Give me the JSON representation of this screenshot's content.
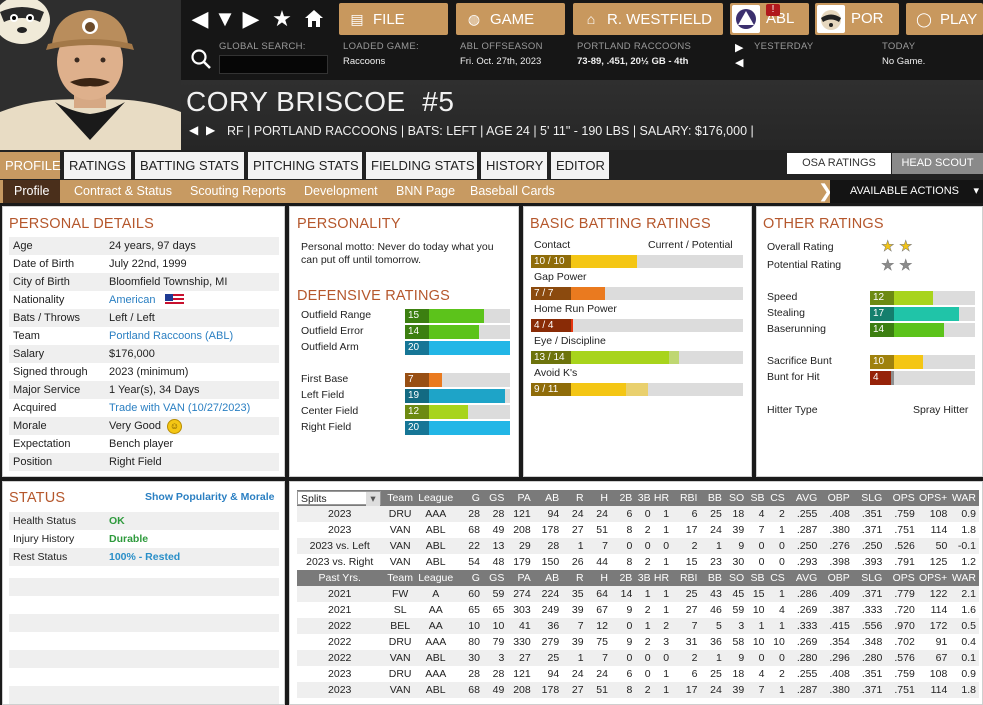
{
  "topnav": {
    "file": "FILE",
    "game": "GAME",
    "manager": "R. WESTFIELD",
    "league": "ABL",
    "team": "POR",
    "play": "PLAY",
    "alert": "!"
  },
  "infobar": {
    "search_label": "GLOBAL SEARCH:",
    "search_value": "",
    "loaded_label": "LOADED GAME:",
    "loaded_value": "Raccoons",
    "season_label": "ABL OFFSEASON",
    "season_value": "Fri. Oct. 27th, 2023",
    "team_label": "PORTLAND RACCOONS",
    "team_value": "73-89, .451, 20½ GB - 4th",
    "yesterday_label": "YESTERDAY",
    "today_label": "TODAY",
    "today_value": "No Game."
  },
  "player": {
    "name": "CORY BRISCOE",
    "number": "#5",
    "info": "RF | PORTLAND RACCOONS  |  BATS: LEFT  |  AGE 24  |  5' 11\" - 190 LBS  |  SALARY: $176,000  |"
  },
  "tabs": [
    "PROFILE",
    "RATINGS",
    "BATTING STATS",
    "PITCHING STATS",
    "FIELDING STATS",
    "HISTORY",
    "EDITOR"
  ],
  "right_tabs": [
    "OSA RATINGS",
    "HEAD SCOUT"
  ],
  "subtabs": [
    "Profile",
    "Contract & Status",
    "Scouting Reports",
    "Development",
    "BNN Page",
    "Baseball Cards"
  ],
  "actions_label": "AVAILABLE ACTIONS",
  "personal": {
    "title": "PERSONAL DETAILS",
    "rows": [
      {
        "k": "Age",
        "v": "24 years, 97 days"
      },
      {
        "k": "Date of Birth",
        "v": "July 22nd, 1999"
      },
      {
        "k": "City of Birth",
        "v": "Bloomfield Township, MI"
      },
      {
        "k": "Nationality",
        "v": "American"
      },
      {
        "k": "Bats / Throws",
        "v": "Left / Left"
      },
      {
        "k": "Team",
        "v": "Portland Raccoons (ABL)"
      },
      {
        "k": "Salary",
        "v": "$176,000"
      },
      {
        "k": "Signed through",
        "v": "2023 (minimum)"
      },
      {
        "k": "Major Service",
        "v": "1 Year(s), 34 Days"
      },
      {
        "k": "Acquired",
        "v": "Trade with VAN (10/27/2023)"
      },
      {
        "k": "Morale",
        "v": "Very Good"
      },
      {
        "k": "Expectation",
        "v": "Bench player"
      },
      {
        "k": "Position",
        "v": "Right Field"
      }
    ]
  },
  "personality": {
    "title": "PERSONALITY",
    "motto": "Personal motto: Never do today what you can put off until tomorrow."
  },
  "defensive": {
    "title": "DEFENSIVE RATINGS",
    "rows": [
      {
        "label": "Outfield Range",
        "value": 15,
        "color": "#5cc31b"
      },
      {
        "label": "Outfield Error",
        "value": 14,
        "color": "#5cc31b"
      },
      {
        "label": "Outfield Arm",
        "value": 20,
        "color": "#22b6e6"
      },
      {
        "label": "First Base",
        "value": 7,
        "color": "#ea7a1f"
      },
      {
        "label": "Left Field",
        "value": 19,
        "color": "#1ea4c8"
      },
      {
        "label": "Center Field",
        "value": 12,
        "color": "#a8d41c"
      },
      {
        "label": "Right Field",
        "value": 20,
        "color": "#22b6e6"
      }
    ]
  },
  "batting": {
    "title": "BASIC BATTING RATINGS",
    "col_label": "Current / Potential",
    "rows": [
      {
        "label": "Contact",
        "text": "10 / 10",
        "current": 10,
        "potential": 10,
        "color": "#f4c614"
      },
      {
        "label": "Gap Power",
        "text": "7 / 7",
        "current": 7,
        "potential": 7,
        "color": "#ea7a1f"
      },
      {
        "label": "Home Run Power",
        "text": "4 / 4",
        "current": 4,
        "potential": 4,
        "color": "#e6350f"
      },
      {
        "label": "Eye / Discipline",
        "text": "13 / 14",
        "current": 13,
        "potential": 14,
        "color": "#a8d41c"
      },
      {
        "label": "Avoid K's",
        "text": "9 / 11",
        "current": 9,
        "potential": 11,
        "color": "#f4c614"
      }
    ]
  },
  "other": {
    "title": "OTHER RATINGS",
    "overall_label": "Overall Rating",
    "potential_label": "Potential Rating",
    "overall_stars": 2,
    "potential_stars": 2,
    "rows": [
      {
        "label": "Speed",
        "value": 12,
        "color": "#a8d41c"
      },
      {
        "label": "Stealing",
        "value": 17,
        "color": "#20c4a8"
      },
      {
        "label": "Baserunning",
        "value": 14,
        "color": "#5cc31b"
      },
      {
        "label": "Sacrifice Bunt",
        "value": 10,
        "color": "#f4c614"
      },
      {
        "label": "Bunt for Hit",
        "value": 4,
        "color": "#e6350f"
      }
    ],
    "hitter_label": "Hitter Type",
    "hitter_value": "Spray Hitter"
  },
  "status": {
    "title": "STATUS",
    "link": "Show Popularity & Morale",
    "rows": [
      {
        "k": "Health Status",
        "v": "OK",
        "color": "#2e9a3c"
      },
      {
        "k": "Injury History",
        "v": "Durable",
        "color": "#2e9a3c"
      },
      {
        "k": "Rest Status",
        "v": "100% - Rested",
        "color": "#2a8fc8"
      }
    ]
  },
  "stats": {
    "select": "Splits",
    "headers": [
      "Team",
      "League",
      "G",
      "GS",
      "PA",
      "AB",
      "R",
      "H",
      "2B",
      "3B",
      "HR",
      "RBI",
      "BB",
      "SO",
      "SB",
      "CS",
      "AVG",
      "OBP",
      "SLG",
      "OPS",
      "OPS+",
      "WAR"
    ],
    "past_label": "Past Yrs.",
    "splits": [
      [
        "2023",
        "DRU",
        "AAA",
        "28",
        "28",
        "121",
        "94",
        "24",
        "24",
        "6",
        "0",
        "1",
        "6",
        "25",
        "18",
        "4",
        "2",
        ".255",
        ".408",
        ".351",
        ".759",
        "108",
        "0.9"
      ],
      [
        "2023",
        "VAN",
        "ABL",
        "68",
        "49",
        "208",
        "178",
        "27",
        "51",
        "8",
        "2",
        "1",
        "17",
        "24",
        "39",
        "7",
        "1",
        ".287",
        ".380",
        ".371",
        ".751",
        "114",
        "1.8"
      ],
      [
        "2023 vs. Left",
        "VAN",
        "ABL",
        "22",
        "13",
        "29",
        "28",
        "1",
        "7",
        "0",
        "0",
        "0",
        "2",
        "1",
        "9",
        "0",
        "0",
        ".250",
        ".276",
        ".250",
        ".526",
        "50",
        "-0.1"
      ],
      [
        "2023 vs. Right",
        "VAN",
        "ABL",
        "54",
        "48",
        "179",
        "150",
        "26",
        "44",
        "8",
        "2",
        "1",
        "15",
        "23",
        "30",
        "0",
        "0",
        ".293",
        ".398",
        ".393",
        ".791",
        "125",
        "1.2"
      ]
    ],
    "past": [
      [
        "2021",
        "FW",
        "A",
        "60",
        "59",
        "274",
        "224",
        "35",
        "64",
        "14",
        "1",
        "1",
        "25",
        "43",
        "45",
        "15",
        "1",
        ".286",
        ".409",
        ".371",
        ".779",
        "122",
        "2.1"
      ],
      [
        "2021",
        "SL",
        "AA",
        "65",
        "65",
        "303",
        "249",
        "39",
        "67",
        "9",
        "2",
        "1",
        "27",
        "46",
        "59",
        "10",
        "4",
        ".269",
        ".387",
        ".333",
        ".720",
        "114",
        "1.6"
      ],
      [
        "2022",
        "BEL",
        "AA",
        "10",
        "10",
        "41",
        "36",
        "7",
        "12",
        "0",
        "1",
        "2",
        "7",
        "5",
        "3",
        "1",
        "1",
        ".333",
        ".415",
        ".556",
        ".970",
        "172",
        "0.5"
      ],
      [
        "2022",
        "DRU",
        "AAA",
        "80",
        "79",
        "330",
        "279",
        "39",
        "75",
        "9",
        "2",
        "3",
        "31",
        "36",
        "58",
        "10",
        "10",
        ".269",
        ".354",
        ".348",
        ".702",
        "91",
        "0.4"
      ],
      [
        "2022",
        "VAN",
        "ABL",
        "30",
        "3",
        "27",
        "25",
        "1",
        "7",
        "0",
        "0",
        "0",
        "2",
        "1",
        "9",
        "0",
        "0",
        ".280",
        ".296",
        ".280",
        ".576",
        "67",
        "0.1"
      ],
      [
        "2023",
        "DRU",
        "AAA",
        "28",
        "28",
        "121",
        "94",
        "24",
        "24",
        "6",
        "0",
        "1",
        "6",
        "25",
        "18",
        "4",
        "2",
        ".255",
        ".408",
        ".351",
        ".759",
        "108",
        "0.9"
      ],
      [
        "2023",
        "VAN",
        "ABL",
        "68",
        "49",
        "208",
        "178",
        "27",
        "51",
        "8",
        "2",
        "1",
        "17",
        "24",
        "39",
        "7",
        "1",
        ".287",
        ".380",
        ".371",
        ".751",
        "114",
        "1.8"
      ]
    ]
  }
}
